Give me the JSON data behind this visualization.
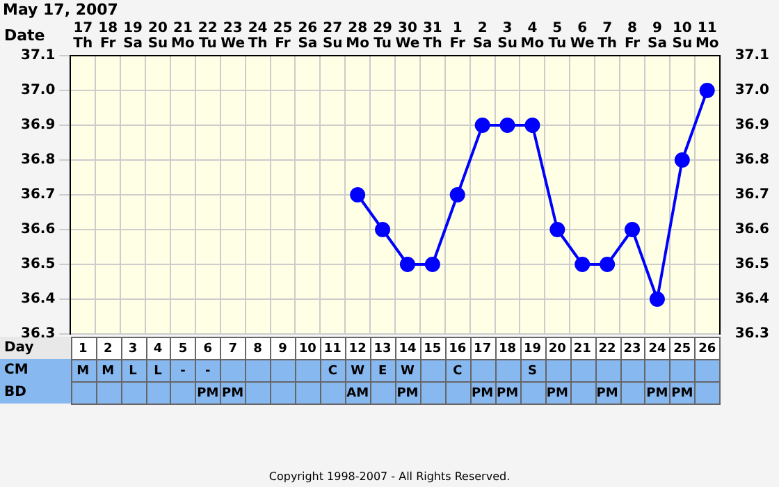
{
  "chart_data": {
    "type": "line",
    "title": "May 17, 2007",
    "categories": [
      "17\nTh\n1\nM\n",
      "18\nFr\n2\nM\n",
      "19\nSa\n3\nL\n",
      "20\nSu\n4\nL\n",
      "21\nMo\n5\n-\n",
      "22\nTu\n6\n-\nPM",
      "23\nWe\n7\n\nPM",
      "24\nTh\n8\n\n",
      "25\nFr\n9\n\n",
      "26\nSa\n10\n\n",
      "27\nSu\n11\nC\n",
      "28\nMo\n12\nW\nAM",
      "29\nTu\n13\nE\n",
      "30\nWe\n14\nW\nPM",
      "31\nTh\n15\n\n",
      "1\nFr\n16\nC\n",
      "2\nSa\n17\n\nPM",
      "3\nSu\n18\n\nPM",
      "4\nMo\n19\nS\n",
      "5\nTu\n20\n\nPM",
      "6\nWe\n21\n\n",
      "7\nTh\n22\n\nPM",
      "8\nFr\n23\n\n",
      "9\nSa\n24\n\nPM",
      "10\nSu\n25\n\nPM",
      "11\nMo\n26\n\n"
    ],
    "series": [
      {
        "color": "#0000ff",
        "values": [
          null,
          null,
          null,
          null,
          null,
          null,
          null,
          null,
          null,
          null,
          null,
          36.7,
          36.6,
          36.5,
          36.5,
          36.7,
          36.9,
          36.9,
          36.9,
          36.6,
          36.5,
          36.5,
          36.6,
          36.4,
          36.8,
          37.0
        ]
      }
    ],
    "ylim": [
      36.3,
      37.1
    ],
    "yticks": [
      36.3,
      36.4,
      36.5,
      36.6,
      36.7,
      36.8,
      36.9,
      {
        "value": 37,
        "label": "37.0"
      },
      37.1
    ],
    "y2lim": [
      36.3,
      37.1
    ],
    "y2ticks": [
      36.3,
      36.4,
      36.5,
      36.6,
      36.7,
      36.8,
      36.9,
      {
        "value": 37,
        "label": "37.0"
      },
      37.1
    ],
    "grid": true,
    "legend": false,
    "marker": "circle",
    "line_style": "solid",
    "annotations": [
      "Date",
      "Day",
      "CM",
      "BD",
      "Copyright 1998-2007 - All Rights Reserved."
    ]
  }
}
